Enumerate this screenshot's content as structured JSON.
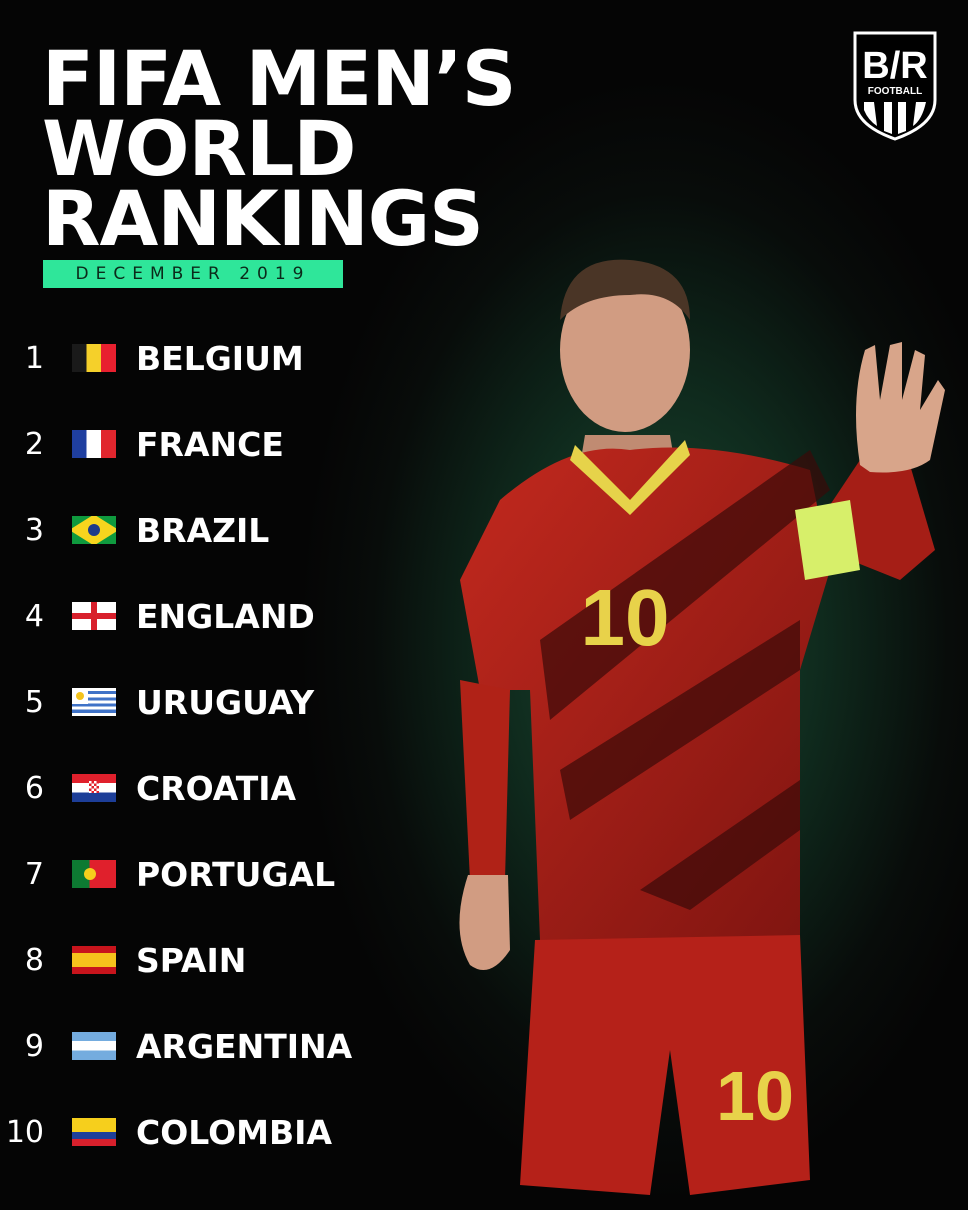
{
  "title": {
    "lines": [
      "FIFA MEN’S",
      "WORLD",
      "RANKINGS"
    ],
    "subtitle": "DECEMBER 2019"
  },
  "logo": {
    "text": "B/R",
    "sub": "FOOTBALL"
  },
  "accent": "#2fe69a",
  "rankings": [
    {
      "rank": "1",
      "country": "BELGIUM",
      "flag": "belgium"
    },
    {
      "rank": "2",
      "country": "FRANCE",
      "flag": "france"
    },
    {
      "rank": "3",
      "country": "BRAZIL",
      "flag": "brazil"
    },
    {
      "rank": "4",
      "country": "ENGLAND",
      "flag": "england"
    },
    {
      "rank": "5",
      "country": "URUGUAY",
      "flag": "uruguay"
    },
    {
      "rank": "6",
      "country": "CROATIA",
      "flag": "croatia"
    },
    {
      "rank": "7",
      "country": "PORTUGAL",
      "flag": "portugal"
    },
    {
      "rank": "8",
      "country": "SPAIN",
      "flag": "spain"
    },
    {
      "rank": "9",
      "country": "ARGENTINA",
      "flag": "argentina"
    },
    {
      "rank": "10",
      "country": "COLOMBIA",
      "flag": "colombia"
    }
  ],
  "player": {
    "shirt_number": "10"
  }
}
